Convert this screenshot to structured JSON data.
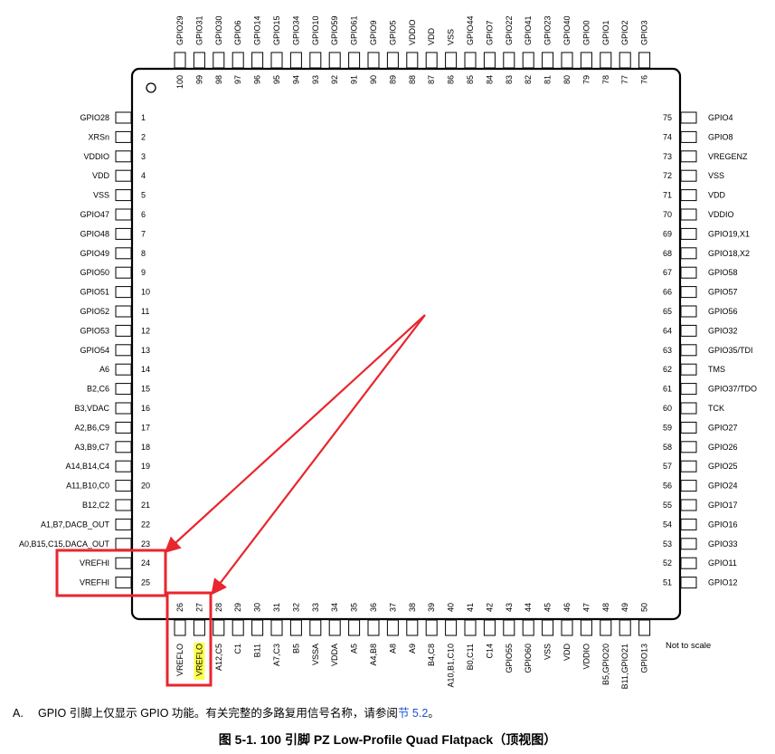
{
  "top_pins": [
    {
      "num": "100",
      "name": "GPIO29"
    },
    {
      "num": "99",
      "name": "GPIO31"
    },
    {
      "num": "98",
      "name": "GPIO30"
    },
    {
      "num": "97",
      "name": "GPIO6"
    },
    {
      "num": "96",
      "name": "GPIO14"
    },
    {
      "num": "95",
      "name": "GPIO15"
    },
    {
      "num": "94",
      "name": "GPIO34"
    },
    {
      "num": "93",
      "name": "GPIO10"
    },
    {
      "num": "92",
      "name": "GPIO59"
    },
    {
      "num": "91",
      "name": "GPIO61"
    },
    {
      "num": "90",
      "name": "GPIO9"
    },
    {
      "num": "89",
      "name": "GPIO5"
    },
    {
      "num": "88",
      "name": "VDDIO"
    },
    {
      "num": "87",
      "name": "VDD"
    },
    {
      "num": "86",
      "name": "VSS"
    },
    {
      "num": "85",
      "name": "GPIO44"
    },
    {
      "num": "84",
      "name": "GPIO7"
    },
    {
      "num": "83",
      "name": "GPIO22"
    },
    {
      "num": "82",
      "name": "GPIO41"
    },
    {
      "num": "81",
      "name": "GPIO23"
    },
    {
      "num": "80",
      "name": "GPIO40"
    },
    {
      "num": "79",
      "name": "GPIO0"
    },
    {
      "num": "78",
      "name": "GPIO1"
    },
    {
      "num": "77",
      "name": "GPIO2"
    },
    {
      "num": "76",
      "name": "GPIO3"
    }
  ],
  "left_pins": [
    {
      "num": "1",
      "name": "GPIO28"
    },
    {
      "num": "2",
      "name": "XRSn"
    },
    {
      "num": "3",
      "name": "VDDIO"
    },
    {
      "num": "4",
      "name": "VDD"
    },
    {
      "num": "5",
      "name": "VSS"
    },
    {
      "num": "6",
      "name": "GPIO47"
    },
    {
      "num": "7",
      "name": "GPIO48"
    },
    {
      "num": "8",
      "name": "GPIO49"
    },
    {
      "num": "9",
      "name": "GPIO50"
    },
    {
      "num": "10",
      "name": "GPIO51"
    },
    {
      "num": "11",
      "name": "GPIO52"
    },
    {
      "num": "12",
      "name": "GPIO53"
    },
    {
      "num": "13",
      "name": "GPIO54"
    },
    {
      "num": "14",
      "name": "A6"
    },
    {
      "num": "15",
      "name": "B2,C6"
    },
    {
      "num": "16",
      "name": "B3,VDAC"
    },
    {
      "num": "17",
      "name": "A2,B6,C9"
    },
    {
      "num": "18",
      "name": "A3,B9,C7"
    },
    {
      "num": "19",
      "name": "A14,B14,C4"
    },
    {
      "num": "20",
      "name": "A11,B10,C0"
    },
    {
      "num": "21",
      "name": "B12,C2"
    },
    {
      "num": "22",
      "name": "A1,B7,DACB_OUT"
    },
    {
      "num": "23",
      "name": "A0,B15,C15,DACA_OUT"
    },
    {
      "num": "24",
      "name": "VREFHI"
    },
    {
      "num": "25",
      "name": "VREFHI"
    }
  ],
  "right_pins": [
    {
      "num": "75",
      "name": "GPIO4"
    },
    {
      "num": "74",
      "name": "GPIO8"
    },
    {
      "num": "73",
      "name": "VREGENZ"
    },
    {
      "num": "72",
      "name": "VSS"
    },
    {
      "num": "71",
      "name": "VDD"
    },
    {
      "num": "70",
      "name": "VDDIO"
    },
    {
      "num": "69",
      "name": "GPIO19,X1"
    },
    {
      "num": "68",
      "name": "GPIO18,X2"
    },
    {
      "num": "67",
      "name": "GPIO58"
    },
    {
      "num": "66",
      "name": "GPIO57"
    },
    {
      "num": "65",
      "name": "GPIO56"
    },
    {
      "num": "64",
      "name": "GPIO32"
    },
    {
      "num": "63",
      "name": "GPIO35/TDI"
    },
    {
      "num": "62",
      "name": "TMS"
    },
    {
      "num": "61",
      "name": "GPIO37/TDO"
    },
    {
      "num": "60",
      "name": "TCK"
    },
    {
      "num": "59",
      "name": "GPIO27"
    },
    {
      "num": "58",
      "name": "GPIO26"
    },
    {
      "num": "57",
      "name": "GPIO25"
    },
    {
      "num": "56",
      "name": "GPIO24"
    },
    {
      "num": "55",
      "name": "GPIO17"
    },
    {
      "num": "54",
      "name": "GPIO16"
    },
    {
      "num": "53",
      "name": "GPIO33"
    },
    {
      "num": "52",
      "name": "GPIO11"
    },
    {
      "num": "51",
      "name": "GPIO12"
    }
  ],
  "bottom_pins": [
    {
      "num": "26",
      "name": "VREFLO"
    },
    {
      "num": "27",
      "name": "VREFLO",
      "highlight": true
    },
    {
      "num": "28",
      "name": "A12,C5"
    },
    {
      "num": "29",
      "name": "C1"
    },
    {
      "num": "30",
      "name": "B11"
    },
    {
      "num": "31",
      "name": "A7,C3"
    },
    {
      "num": "32",
      "name": "B5"
    },
    {
      "num": "33",
      "name": "VSSA"
    },
    {
      "num": "34",
      "name": "VDDA"
    },
    {
      "num": "35",
      "name": "A5"
    },
    {
      "num": "36",
      "name": "A4,B8"
    },
    {
      "num": "37",
      "name": "A8"
    },
    {
      "num": "38",
      "name": "A9"
    },
    {
      "num": "39",
      "name": "B4,C8"
    },
    {
      "num": "40",
      "name": "A10,B1,C10"
    },
    {
      "num": "41",
      "name": "B0,C11"
    },
    {
      "num": "42",
      "name": "C14"
    },
    {
      "num": "43",
      "name": "GPIO55"
    },
    {
      "num": "44",
      "name": "GPIO60"
    },
    {
      "num": "45",
      "name": "VSS"
    },
    {
      "num": "46",
      "name": "VDD"
    },
    {
      "num": "47",
      "name": "VDDIO"
    },
    {
      "num": "48",
      "name": "B5,GPIO20"
    },
    {
      "num": "49",
      "name": "B11,GPIO21"
    },
    {
      "num": "50",
      "name": "GPIO13"
    }
  ],
  "colors": {
    "annotation_red": "#e8262d",
    "highlight_yellow": "#ffff4d",
    "link_blue": "#1f4fd6"
  },
  "note": "Not to scale",
  "footnote": {
    "label": "A.",
    "text": "GPIO 引脚上仅显示 GPIO 功能。有关完整的多路复用信号名称，请参阅",
    "link": "节 5.2",
    "end": "。"
  },
  "caption": "图 5-1. 100 引脚 PZ Low-Profile Quad Flatpack（顶视图）"
}
